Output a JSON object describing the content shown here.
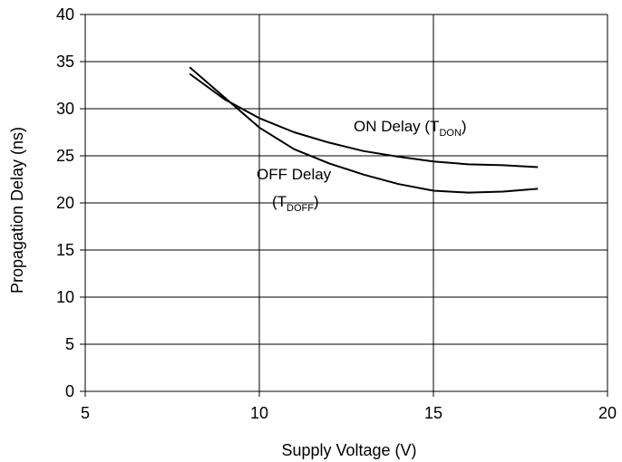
{
  "chart_data": {
    "type": "line",
    "xlabel": "Supply Voltage (V)",
    "ylabel": "Propagation Delay (ns)",
    "xlim": [
      5,
      20
    ],
    "ylim": [
      0,
      40
    ],
    "x_ticks": [
      "5",
      "10",
      "15",
      "20"
    ],
    "y_ticks": [
      "0",
      "5",
      "10",
      "15",
      "20",
      "25",
      "30",
      "35",
      "40"
    ],
    "grid": {
      "vertical": [
        10,
        15,
        20
      ],
      "horizontal": [
        5,
        10,
        15,
        20,
        25,
        30,
        35,
        40
      ]
    },
    "series": [
      {
        "label_main": "ON Delay (T",
        "label_sub": "DON",
        "label_close": ")",
        "x": [
          8,
          9,
          10,
          11,
          12,
          13,
          14,
          15,
          16,
          17,
          18
        ],
        "y": [
          33.7,
          31.0,
          29.0,
          27.5,
          26.4,
          25.5,
          24.9,
          24.4,
          24.1,
          24.0,
          23.8
        ]
      },
      {
        "label_main": "OFF Delay",
        "label_paren_open": "(T",
        "label_sub": "DOFF",
        "label_close": ")",
        "x": [
          8,
          9,
          10,
          11,
          12,
          13,
          14,
          15,
          16,
          17,
          18
        ],
        "y": [
          34.4,
          31.2,
          28.0,
          25.7,
          24.2,
          23.0,
          22.0,
          21.3,
          21.1,
          21.2,
          21.5
        ]
      }
    ]
  }
}
